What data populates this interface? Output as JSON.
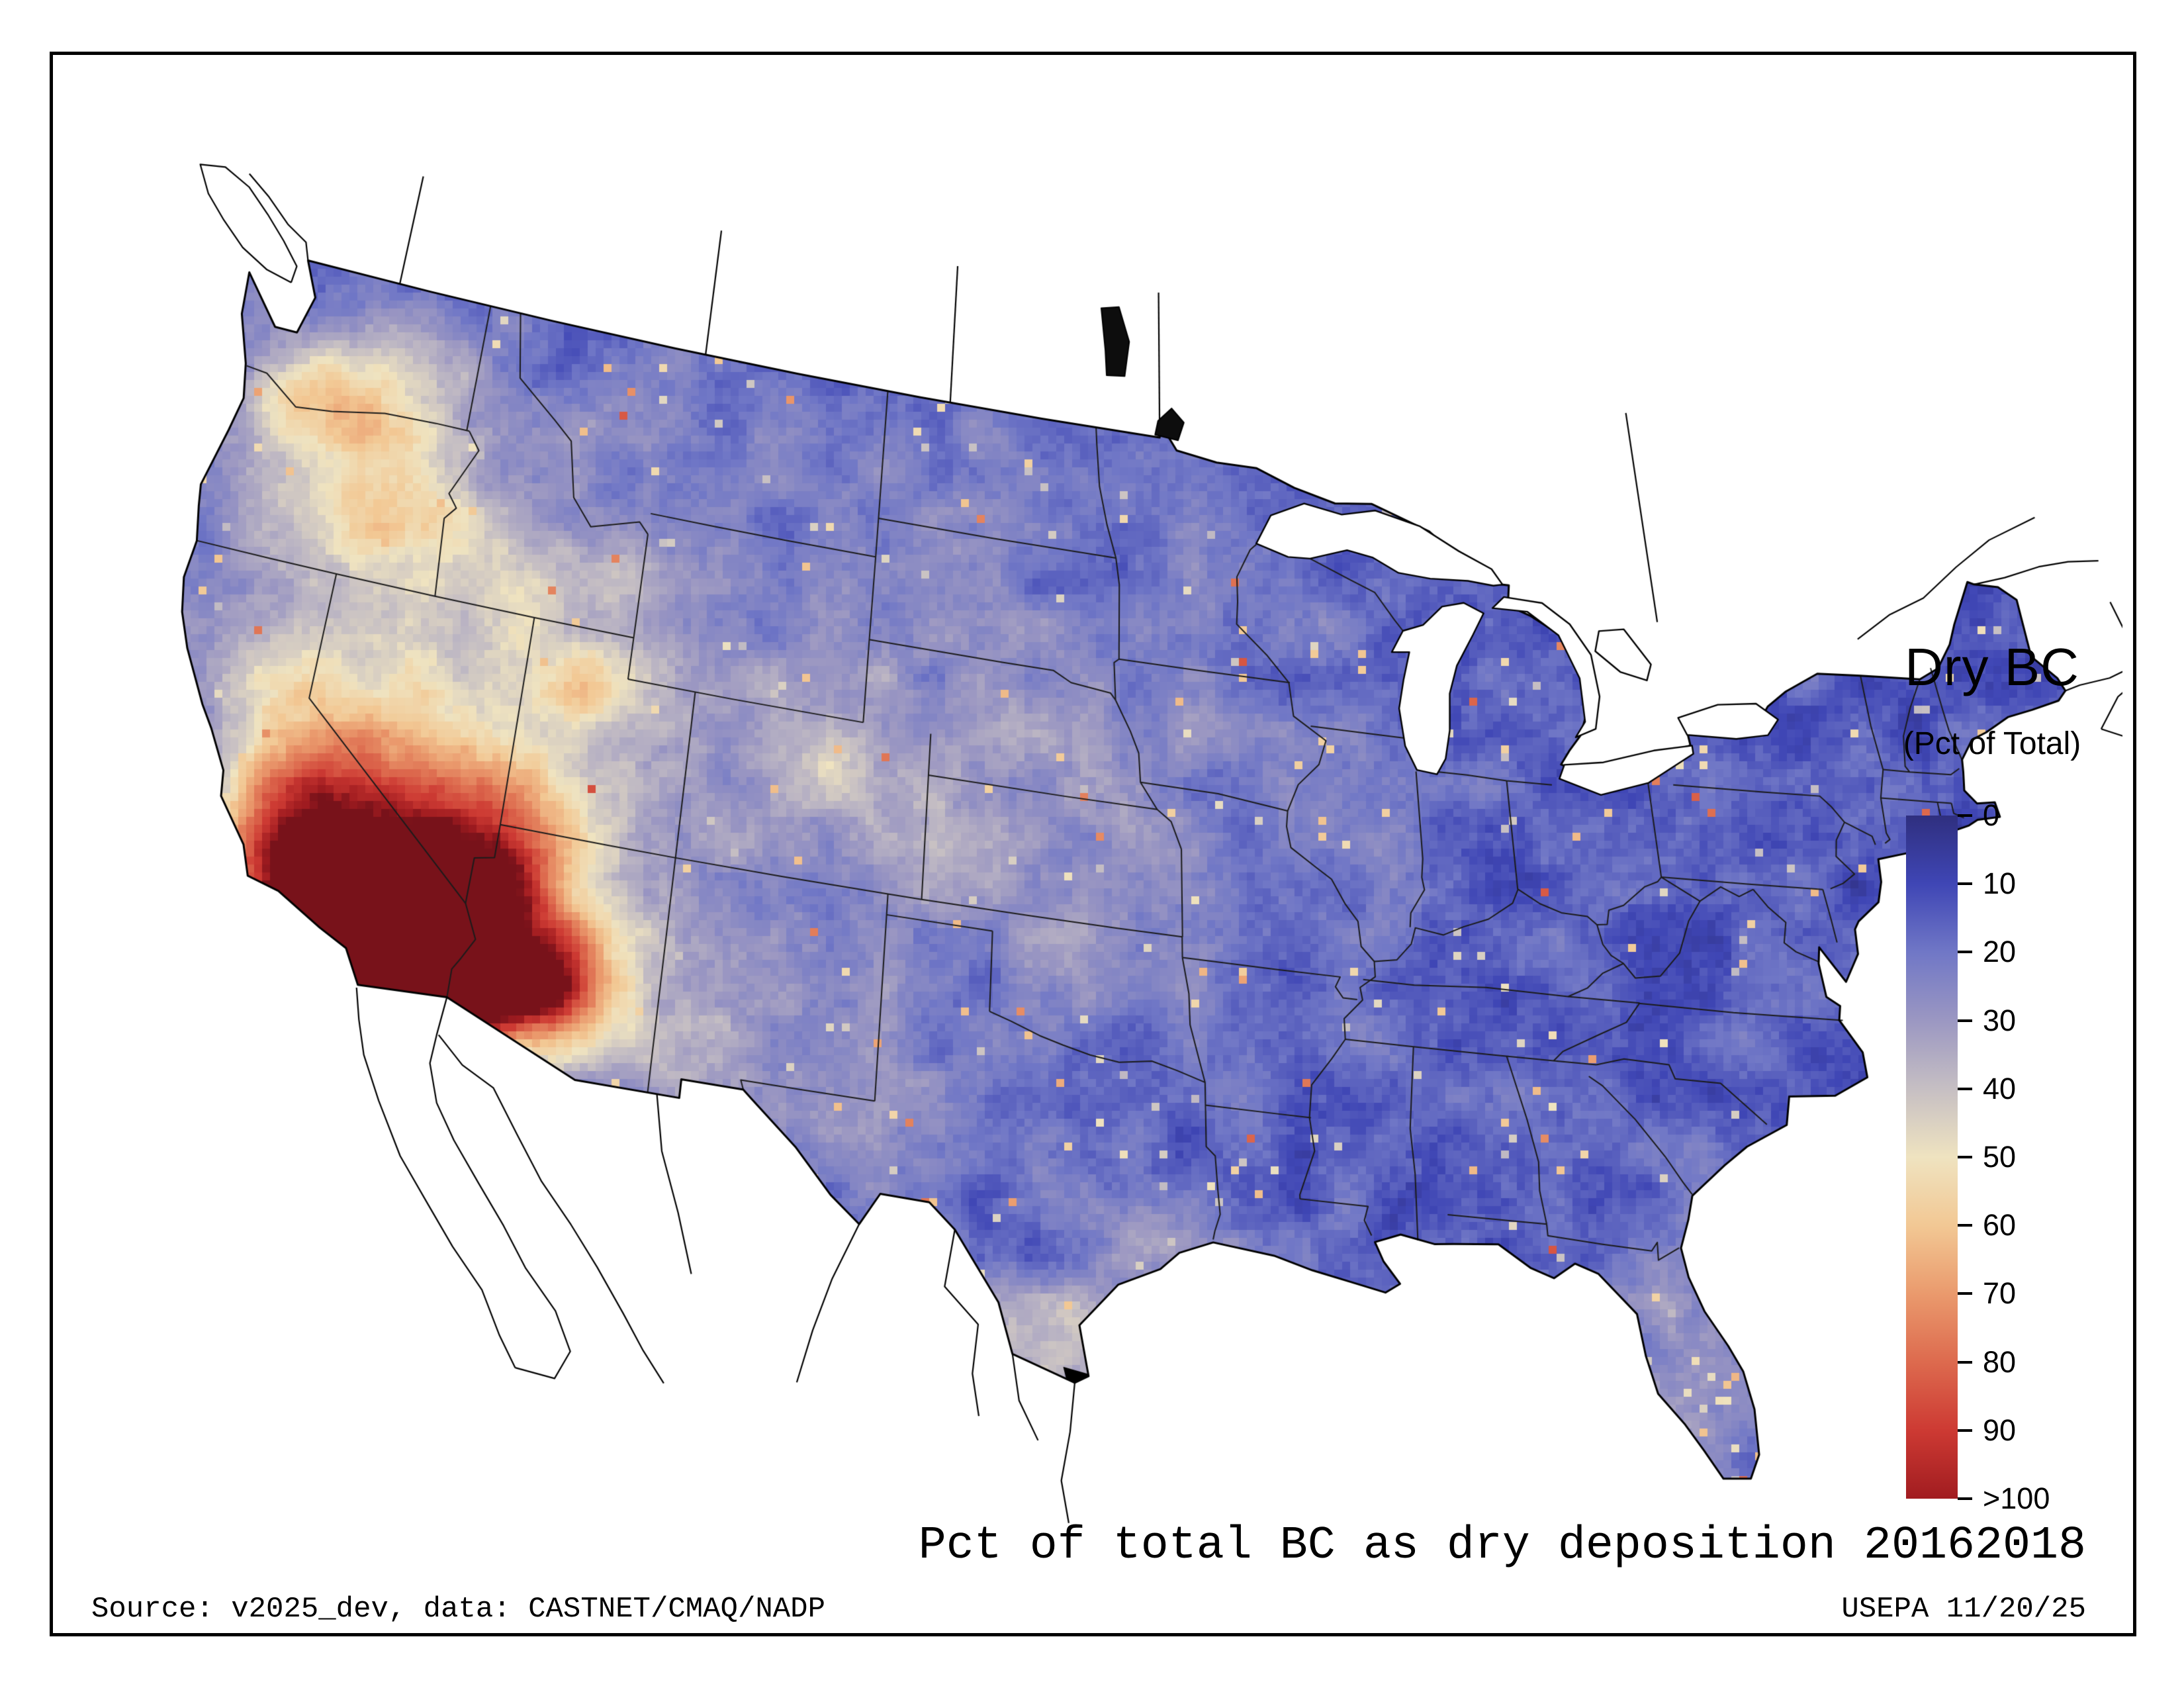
{
  "window": {
    "background": "#ffffff",
    "frame_color": "#000000"
  },
  "legend": {
    "title": "Dry BC",
    "subtitle": "(Pct of Total)",
    "ticks": [
      "0",
      "10",
      "20",
      "30",
      "40",
      "50",
      "60",
      "70",
      "80",
      "90",
      ">100"
    ],
    "colorbar_stops": [
      "#2f2f7f",
      "#3f46b5",
      "#7077c6",
      "#9b97c2",
      "#c6bfc3",
      "#efe3c0",
      "#f2c894",
      "#ea9a6d",
      "#dd6a4e",
      "#cd3a33",
      "#a11c20"
    ],
    "over_color": "#78121a"
  },
  "map": {
    "outline_color": "#000000",
    "state_line_color": "#1b1b1b",
    "water_color": "#ffffff",
    "no_data_color": "#000000"
  },
  "caption": "Pct of total BC as dry deposition 20162018",
  "footer": {
    "source": "Source: v2025_dev, data: CASTNET/CMAQ/NADP",
    "agency": "USEPA 11/20/25"
  }
}
